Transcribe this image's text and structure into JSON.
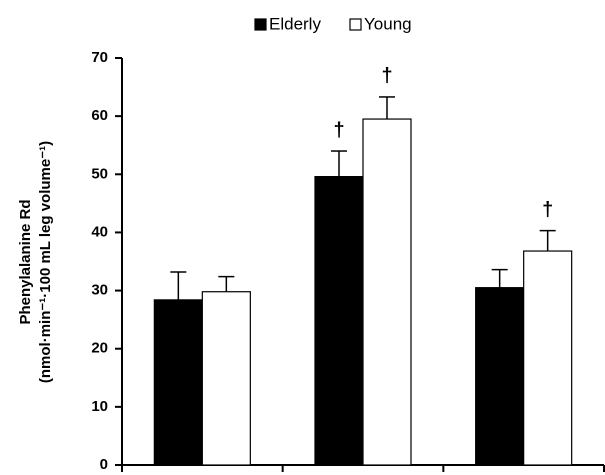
{
  "chart_data": {
    "type": "bar",
    "y_label": [
      "Phenylalanine Rd",
      "(nmol·min⁻¹·100 mL leg volume⁻¹)"
    ],
    "categories": [
      null,
      null,
      null
    ],
    "series": [
      {
        "name": "Elderly",
        "color": "#000000",
        "values": [
          28.4,
          49.6,
          30.5
        ],
        "errors": [
          4.8,
          4.4,
          3.1
        ],
        "annotations": [
          null,
          "†",
          null
        ]
      },
      {
        "name": "Young",
        "color": "#ffffff",
        "values": [
          29.8,
          59.5,
          36.8
        ],
        "errors": [
          2.6,
          3.8,
          3.5
        ],
        "annotations": [
          null,
          "†",
          "†"
        ]
      }
    ],
    "ylim": [
      0,
      70
    ],
    "yticks": [
      0,
      10,
      20,
      30,
      40,
      50,
      60,
      70
    ],
    "grid": false,
    "legend": "top"
  }
}
